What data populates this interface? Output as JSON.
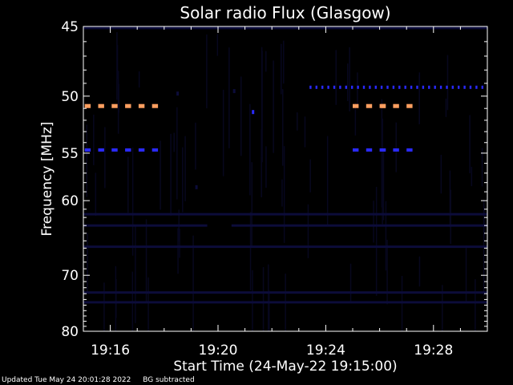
{
  "chart_data": {
    "type": "heatmap",
    "title": "Solar radio Flux (Glasgow)",
    "xlabel": "Start Time (24-May-22 19:15:00)",
    "ylabel": "Frequency [MHz]",
    "x_tick_labels": [
      "19:16",
      "19:20",
      "19:24",
      "19:28"
    ],
    "x_tick_minutes": [
      16,
      20,
      24,
      28
    ],
    "xlim_minutes": [
      15.0,
      30.0
    ],
    "y_tick_labels": [
      "45",
      "50",
      "55",
      "60",
      "70",
      "80"
    ],
    "y_tick_values": [
      45,
      50,
      55,
      60,
      70,
      80
    ],
    "ylim": [
      45,
      80
    ],
    "y_scale": "reciprocal",
    "grid": false,
    "legend": "none",
    "colors": {
      "background": "#000000",
      "axes": "#ffffff",
      "text": "#ffffff",
      "strong_emission": "#ff9f60",
      "moderate_emission": "#2a2aff",
      "weak_emission": "#0c0c3a",
      "noise": "#07071e"
    },
    "features": [
      {
        "kind": "dashed_band",
        "freq": 50.8,
        "from": 15.05,
        "to": 17.85,
        "step": 0.5,
        "length": 0.22,
        "level": "strong"
      },
      {
        "kind": "dashed_band",
        "freq": 50.8,
        "from": 25.0,
        "to": 27.4,
        "step": 0.5,
        "length": 0.22,
        "level": "strong"
      },
      {
        "kind": "dashed_band",
        "freq": 50.8,
        "from": 26.05,
        "to": 26.5,
        "step": 0.5,
        "length": 0.18,
        "level": "strong"
      },
      {
        "kind": "dashed_band",
        "freq": 54.7,
        "from": 15.05,
        "to": 17.85,
        "step": 0.5,
        "length": 0.22,
        "level": "moderate"
      },
      {
        "kind": "dashed_band",
        "freq": 54.7,
        "from": 25.0,
        "to": 27.4,
        "step": 0.5,
        "length": 0.22,
        "level": "moderate"
      },
      {
        "kind": "dashed_band",
        "freq": 54.7,
        "from": 26.05,
        "to": 26.5,
        "step": 0.5,
        "length": 0.18,
        "level": "moderate"
      },
      {
        "kind": "dashed_band",
        "freq": 49.3,
        "from": 23.4,
        "to": 30.0,
        "step": 0.22,
        "length": 0.07,
        "level": "moderate"
      },
      {
        "kind": "spot",
        "freq": 51.3,
        "time": 21.3,
        "level": "moderate"
      },
      {
        "kind": "spot",
        "freq": 49.8,
        "time": 18.5,
        "level": "weak"
      },
      {
        "kind": "spot",
        "freq": 49.6,
        "time": 20.6,
        "level": "weak"
      },
      {
        "kind": "spot",
        "freq": 58.5,
        "time": 19.2,
        "level": "weak"
      },
      {
        "kind": "continuous_band",
        "freq": 63.0,
        "from": 20.5,
        "to": 30.0,
        "level": "weak"
      },
      {
        "kind": "continuous_band",
        "freq": 63.0,
        "from": 15.0,
        "to": 19.6,
        "level": "weak"
      },
      {
        "kind": "continuous_band",
        "freq": 45.1,
        "from": 15.0,
        "to": 30.0,
        "level": "weak"
      },
      {
        "kind": "continuous_band",
        "freq": 61.6,
        "from": 15.0,
        "to": 30.0,
        "level": "weak"
      },
      {
        "kind": "continuous_band",
        "freq": 65.8,
        "from": 15.0,
        "to": 30.0,
        "level": "weak"
      },
      {
        "kind": "continuous_band",
        "freq": 72.8,
        "from": 15.0,
        "to": 30.0,
        "level": "weak"
      },
      {
        "kind": "continuous_band",
        "freq": 74.5,
        "from": 15.0,
        "to": 30.0,
        "level": "weak"
      }
    ]
  },
  "footer": {
    "updated": "Updated Tue May 24 20:01:28 2022",
    "note": "BG subtracted"
  }
}
